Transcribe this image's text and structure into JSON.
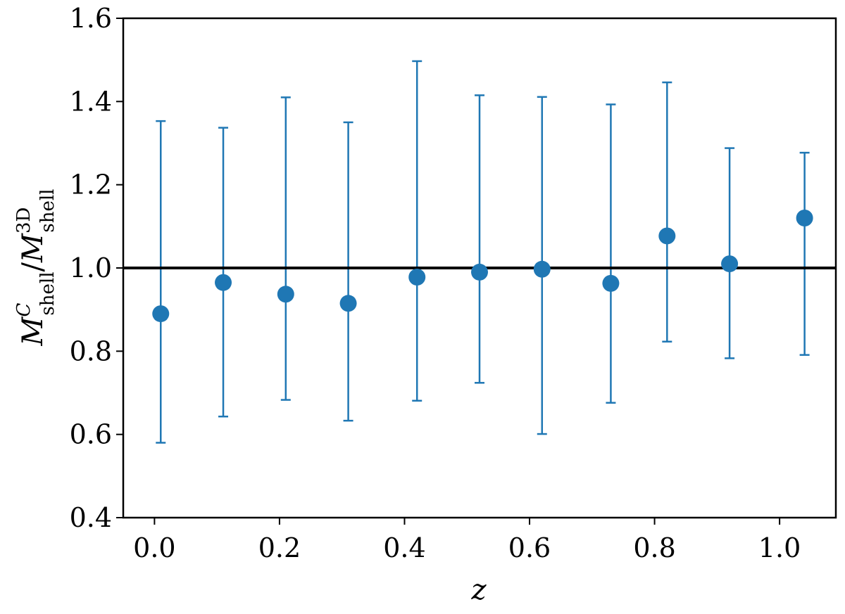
{
  "chart_data": {
    "type": "scatter",
    "title": "",
    "xlabel": "z",
    "ylabel": {
      "base1": "M",
      "sup1": "C",
      "sub1": "shell",
      "slash": "/",
      "base2": "M",
      "sup2": "3D",
      "sub2": "shell"
    },
    "xlim": [
      -0.05,
      1.09
    ],
    "ylim": [
      0.4,
      1.6
    ],
    "xticks": [
      0.0,
      0.2,
      0.4,
      0.6,
      0.8,
      1.0
    ],
    "xtick_labels": [
      "0.0",
      "0.2",
      "0.4",
      "0.6",
      "0.8",
      "1.0"
    ],
    "yticks": [
      0.4,
      0.6,
      0.8,
      1.0,
      1.2,
      1.4,
      1.6
    ],
    "ytick_labels": [
      "0.4",
      "0.6",
      "0.8",
      "1.0",
      "1.2",
      "1.4",
      "1.6"
    ],
    "reference_line": 1.0,
    "grid": false,
    "series": [
      {
        "color": "#1f77b4",
        "points": [
          {
            "x": 0.01,
            "y": 0.89,
            "ylow": 0.58,
            "yhigh": 1.353
          },
          {
            "x": 0.11,
            "y": 0.965,
            "ylow": 0.643,
            "yhigh": 1.337
          },
          {
            "x": 0.21,
            "y": 0.937,
            "ylow": 0.683,
            "yhigh": 1.41
          },
          {
            "x": 0.31,
            "y": 0.915,
            "ylow": 0.633,
            "yhigh": 1.35
          },
          {
            "x": 0.42,
            "y": 0.978,
            "ylow": 0.681,
            "yhigh": 1.497
          },
          {
            "x": 0.52,
            "y": 0.99,
            "ylow": 0.724,
            "yhigh": 1.415
          },
          {
            "x": 0.62,
            "y": 0.997,
            "ylow": 0.601,
            "yhigh": 1.411
          },
          {
            "x": 0.73,
            "y": 0.963,
            "ylow": 0.676,
            "yhigh": 1.393
          },
          {
            "x": 0.82,
            "y": 1.077,
            "ylow": 0.823,
            "yhigh": 1.446
          },
          {
            "x": 0.92,
            "y": 1.01,
            "ylow": 0.783,
            "yhigh": 1.288
          },
          {
            "x": 1.04,
            "y": 1.12,
            "ylow": 0.791,
            "yhigh": 1.277
          }
        ]
      }
    ],
    "reference_color": "#000000"
  }
}
